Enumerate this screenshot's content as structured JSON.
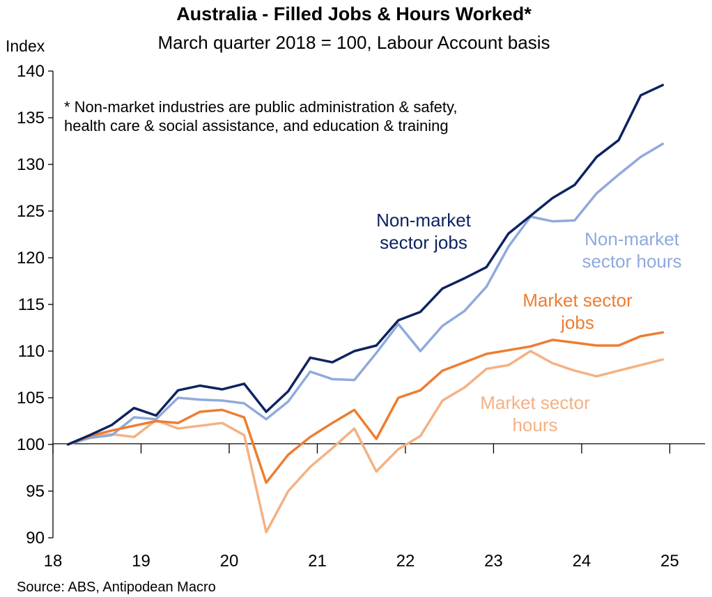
{
  "chart_data": {
    "type": "line",
    "title": "Australia - Filled Jobs & Hours Worked*",
    "subtitle": "March quarter 2018 = 100, Labour Account basis",
    "ylabel": "Index",
    "xlabel": "",
    "note_lines": [
      "* Non-market industries are public administration & safety,",
      "health care & social assistance, and education & training"
    ],
    "source": "Source: ABS, Antipodean Macro",
    "ylim": [
      90,
      140
    ],
    "yticks": [
      90,
      95,
      100,
      105,
      110,
      115,
      120,
      125,
      130,
      135,
      140
    ],
    "xlim": [
      2018.0,
      2025.4
    ],
    "xticks": [
      {
        "value": 2018,
        "label": "18"
      },
      {
        "value": 2019,
        "label": "19"
      },
      {
        "value": 2020,
        "label": "20"
      },
      {
        "value": 2021,
        "label": "21"
      },
      {
        "value": 2022,
        "label": "22"
      },
      {
        "value": 2023,
        "label": "23"
      },
      {
        "value": 2024,
        "label": "24"
      },
      {
        "value": 2025,
        "label": "25"
      }
    ],
    "grid": false,
    "legend": "inline labels",
    "x": [
      2018.17,
      2018.42,
      2018.67,
      2018.92,
      2019.17,
      2019.42,
      2019.67,
      2019.92,
      2020.17,
      2020.42,
      2020.67,
      2020.92,
      2021.17,
      2021.42,
      2021.67,
      2021.92,
      2022.17,
      2022.42,
      2022.67,
      2022.92,
      2023.17,
      2023.42,
      2023.67,
      2023.92,
      2024.17,
      2024.42,
      2024.67,
      2024.92
    ],
    "series": [
      {
        "name": "Non-market sector jobs",
        "label_lines": [
          "Non-market",
          "sector jobs"
        ],
        "color": "#0d2361",
        "values": [
          100.0,
          101.0,
          102.1,
          103.9,
          103.1,
          105.8,
          106.3,
          105.9,
          106.5,
          103.5,
          105.7,
          109.3,
          108.8,
          110.0,
          110.6,
          113.3,
          114.2,
          116.7,
          117.8,
          119.0,
          122.6,
          124.5,
          126.4,
          127.8,
          130.8,
          132.6,
          137.4,
          138.5
        ]
      },
      {
        "name": "Non-market sector hours",
        "label_lines": [
          "Non-market",
          "sector hours"
        ],
        "color": "#8faadc",
        "values": [
          100.0,
          100.7,
          101.0,
          102.9,
          102.7,
          105.0,
          104.8,
          104.7,
          104.4,
          102.7,
          104.6,
          107.8,
          107.0,
          106.9,
          109.8,
          112.9,
          110.0,
          112.7,
          114.3,
          116.9,
          121.2,
          124.4,
          123.9,
          124.0,
          126.9,
          128.9,
          130.8,
          132.2
        ]
      },
      {
        "name": "Market sector jobs",
        "label_lines": [
          "Market sector",
          "jobs"
        ],
        "color": "#ed7d31",
        "values": [
          100.0,
          100.9,
          101.5,
          102.0,
          102.5,
          102.3,
          103.5,
          103.7,
          102.9,
          95.9,
          98.9,
          100.8,
          102.3,
          103.7,
          100.6,
          105.0,
          105.8,
          107.9,
          108.8,
          109.7,
          110.1,
          110.5,
          111.2,
          110.9,
          110.6,
          110.6,
          111.6,
          112.0
        ]
      },
      {
        "name": "Market sector hours",
        "label_lines": [
          "Market sector",
          "hours"
        ],
        "color": "#f4b183",
        "values": [
          100.0,
          100.8,
          101.1,
          100.8,
          102.6,
          101.7,
          102.0,
          102.3,
          101.0,
          90.6,
          95.0,
          97.6,
          99.6,
          101.7,
          97.1,
          99.5,
          100.9,
          104.7,
          106.1,
          108.1,
          108.5,
          110.0,
          108.7,
          107.9,
          107.3,
          107.9,
          108.5,
          109.1
        ]
      }
    ]
  }
}
